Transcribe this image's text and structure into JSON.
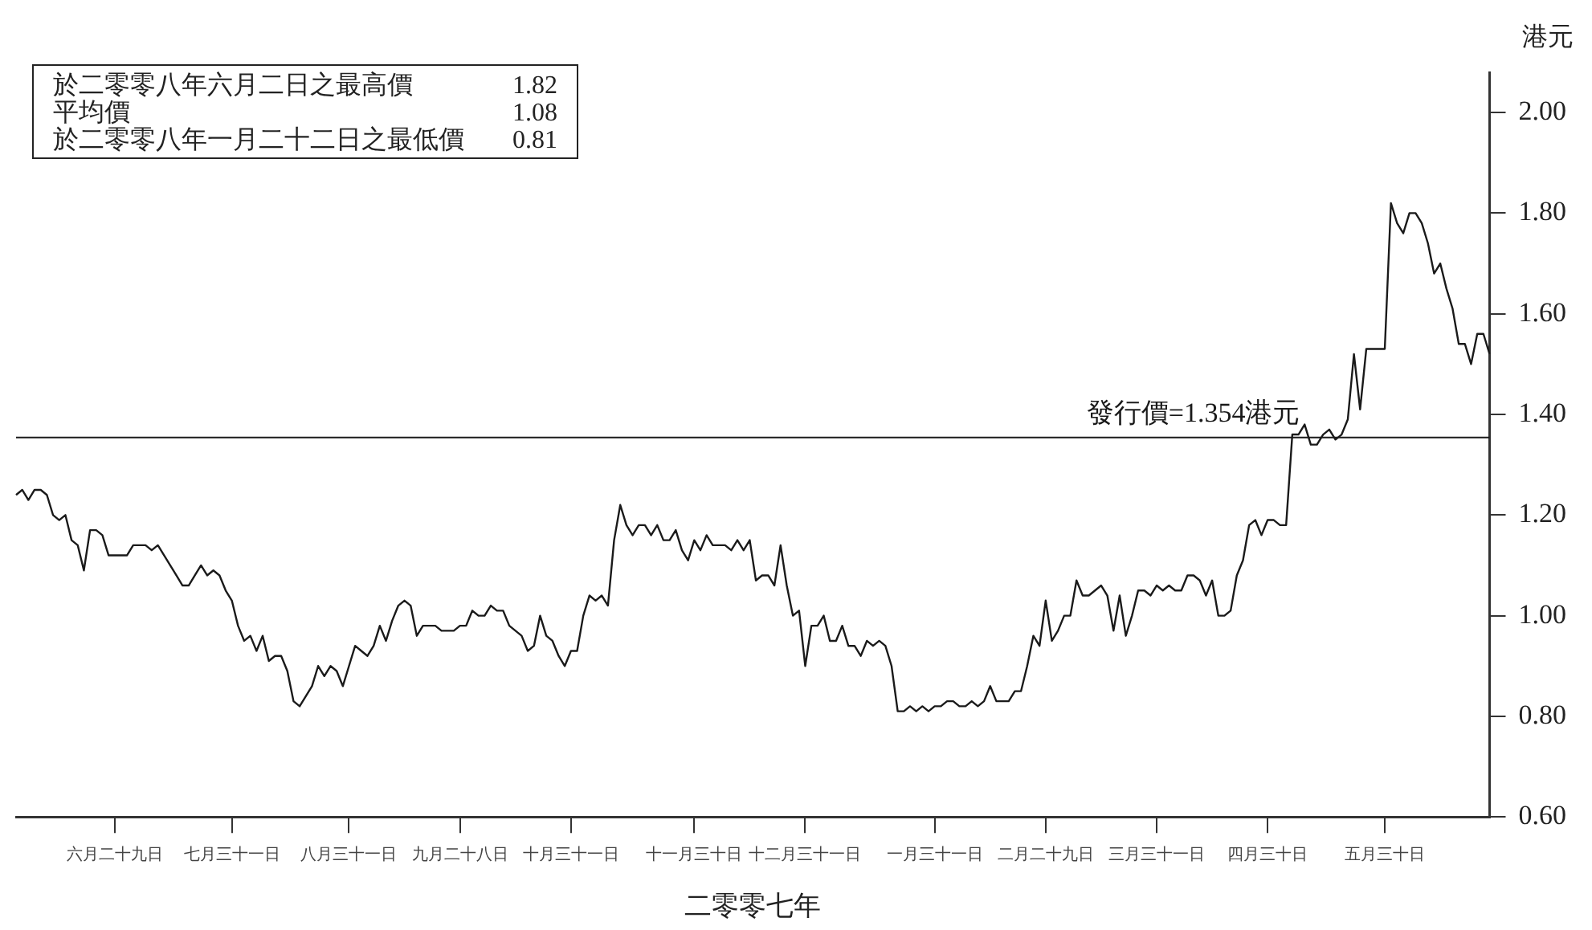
{
  "chart_data": {
    "type": "line",
    "xlabel": "二零零七年",
    "ylabel": "港元",
    "categories": [
      null,
      null,
      null,
      null,
      null,
      null,
      null,
      null,
      null,
      null,
      null,
      null,
      null,
      null,
      null,
      null,
      "六月二十九日",
      null,
      null,
      null,
      null,
      null,
      null,
      null,
      null,
      null,
      null,
      null,
      null,
      null,
      null,
      null,
      null,
      null,
      null,
      "七月三十一日",
      null,
      null,
      null,
      null,
      null,
      null,
      null,
      null,
      null,
      null,
      null,
      null,
      null,
      null,
      null,
      null,
      null,
      null,
      "八月三十一日",
      null,
      null,
      null,
      null,
      null,
      null,
      null,
      null,
      null,
      null,
      null,
      null,
      null,
      null,
      null,
      null,
      null,
      "九月二十八日",
      null,
      null,
      null,
      null,
      null,
      null,
      null,
      null,
      null,
      null,
      null,
      null,
      null,
      null,
      null,
      null,
      null,
      "十月三十一日",
      null,
      null,
      null,
      null,
      null,
      null,
      null,
      null,
      null,
      null,
      null,
      null,
      null,
      null,
      null,
      null,
      null,
      null,
      null,
      "十一月三十日",
      null,
      null,
      null,
      null,
      null,
      null,
      null,
      null,
      null,
      null,
      null,
      null,
      null,
      null,
      null,
      null,
      null,
      "十二月三十一日",
      null,
      null,
      null,
      null,
      null,
      null,
      null,
      null,
      null,
      null,
      null,
      null,
      null,
      null,
      null,
      null,
      null,
      null,
      null,
      null,
      "一月三十一日",
      null,
      null,
      null,
      null,
      null,
      null,
      null,
      null,
      null,
      null,
      null,
      null,
      null,
      null,
      null,
      null,
      null,
      "二月二十九日",
      null,
      null,
      null,
      null,
      null,
      null,
      null,
      null,
      null,
      null,
      null,
      null,
      null,
      null,
      null,
      null,
      null,
      "三月三十一日",
      null,
      null,
      null,
      null,
      null,
      null,
      null,
      null,
      null,
      null,
      null,
      null,
      null,
      null,
      null,
      null,
      null,
      "四月三十日",
      null,
      null,
      null,
      null,
      null,
      null,
      null,
      null,
      null,
      null,
      null,
      null,
      null,
      null,
      null,
      null,
      null,
      null,
      "五月三十日",
      null,
      null,
      null,
      null,
      null,
      null,
      null,
      null,
      null,
      null,
      null,
      null,
      null,
      null,
      null,
      null,
      null
    ],
    "series": [
      {
        "color": "#1a1a1a",
        "values": [
          1.24,
          1.25,
          1.23,
          1.25,
          1.25,
          1.24,
          1.2,
          1.19,
          1.2,
          1.15,
          1.14,
          1.09,
          1.17,
          1.17,
          1.16,
          1.12,
          1.12,
          1.12,
          1.12,
          1.14,
          1.14,
          1.14,
          1.13,
          1.14,
          1.12,
          1.1,
          1.08,
          1.06,
          1.06,
          1.08,
          1.1,
          1.08,
          1.09,
          1.08,
          1.05,
          1.03,
          0.98,
          0.95,
          0.96,
          0.93,
          0.96,
          0.91,
          0.92,
          0.92,
          0.89,
          0.83,
          0.82,
          0.84,
          0.86,
          0.9,
          0.88,
          0.9,
          0.89,
          0.86,
          0.9,
          0.94,
          0.93,
          0.92,
          0.94,
          0.98,
          0.95,
          0.99,
          1.02,
          1.03,
          1.02,
          0.96,
          0.98,
          0.98,
          0.98,
          0.97,
          0.97,
          0.97,
          0.98,
          0.98,
          1.01,
          1.0,
          1.0,
          1.02,
          1.01,
          1.01,
          0.98,
          0.97,
          0.96,
          0.93,
          0.94,
          1.0,
          0.96,
          0.95,
          0.92,
          0.9,
          0.93,
          0.93,
          1.0,
          1.04,
          1.03,
          1.04,
          1.02,
          1.15,
          1.22,
          1.18,
          1.16,
          1.18,
          1.18,
          1.16,
          1.18,
          1.15,
          1.15,
          1.17,
          1.13,
          1.11,
          1.15,
          1.13,
          1.16,
          1.14,
          1.14,
          1.14,
          1.13,
          1.15,
          1.13,
          1.15,
          1.07,
          1.08,
          1.08,
          1.06,
          1.14,
          1.06,
          1.0,
          1.01,
          0.9,
          0.98,
          0.98,
          1.0,
          0.95,
          0.95,
          0.98,
          0.94,
          0.94,
          0.92,
          0.95,
          0.94,
          0.95,
          0.94,
          0.9,
          0.81,
          0.81,
          0.82,
          0.81,
          0.82,
          0.81,
          0.82,
          0.82,
          0.83,
          0.83,
          0.82,
          0.82,
          0.83,
          0.82,
          0.83,
          0.86,
          0.83,
          0.83,
          0.83,
          0.85,
          0.85,
          0.9,
          0.96,
          0.94,
          1.03,
          0.95,
          0.97,
          1.0,
          1.0,
          1.07,
          1.04,
          1.04,
          1.05,
          1.06,
          1.04,
          0.97,
          1.04,
          0.96,
          1.0,
          1.05,
          1.05,
          1.04,
          1.06,
          1.05,
          1.06,
          1.05,
          1.05,
          1.08,
          1.08,
          1.07,
          1.04,
          1.07,
          1.0,
          1.0,
          1.01,
          1.08,
          1.11,
          1.18,
          1.19,
          1.16,
          1.19,
          1.19,
          1.18,
          1.18,
          1.36,
          1.36,
          1.38,
          1.34,
          1.34,
          1.36,
          1.37,
          1.35,
          1.36,
          1.39,
          1.52,
          1.41,
          1.53,
          1.53,
          1.53,
          1.53,
          1.82,
          1.78,
          1.76,
          1.8,
          1.8,
          1.78,
          1.74,
          1.68,
          1.7,
          1.65,
          1.61,
          1.54,
          1.54,
          1.5,
          1.56,
          1.56,
          1.52
        ]
      }
    ],
    "ylim": [
      0.6,
      2.08
    ],
    "yticks": [
      {
        "value": 0.6,
        "label": "0.60"
      },
      {
        "value": 0.8,
        "label": "0.80"
      },
      {
        "value": 1.0,
        "label": "1.00"
      },
      {
        "value": 1.2,
        "label": "1.20"
      },
      {
        "value": 1.4,
        "label": "1.40"
      },
      {
        "value": 1.6,
        "label": "1.60"
      },
      {
        "value": 1.8,
        "label": "1.80"
      },
      {
        "value": 2.0,
        "label": "2.00"
      }
    ],
    "ref_lines": [
      {
        "axis": "y",
        "value": 1.354,
        "label": "發行價=1.354港元",
        "color": "#1a1a1a"
      }
    ],
    "annotations": [
      "於二零零八年六月二日之最高價",
      "1.82",
      "平均價",
      "1.08",
      "於二零零八年一月二十二日之最低價",
      "0.81"
    ],
    "grid": false,
    "legend": false,
    "marker": "none",
    "line_style": "solid"
  }
}
